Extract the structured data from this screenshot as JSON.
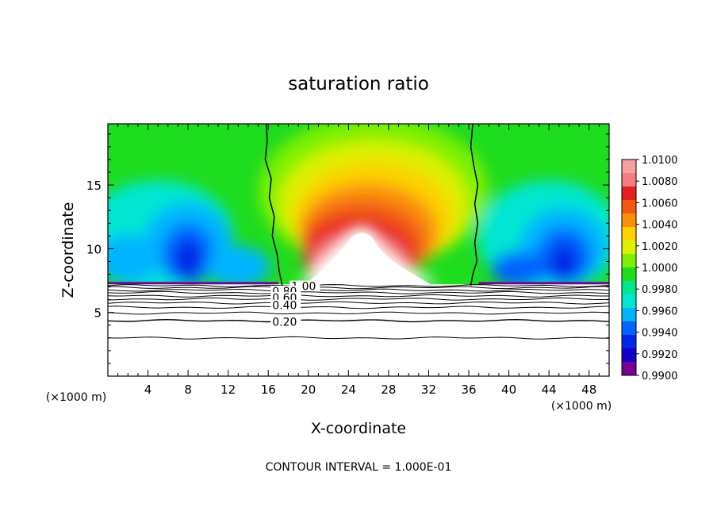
{
  "chart_data": {
    "type": "heatmap",
    "title": "saturation ratio",
    "xlabel": "X-coordinate",
    "ylabel": "Z-coordinate",
    "x_unit_left": "(×1000 m)",
    "x_unit_right": "(×1000 m)",
    "footer": "CONTOUR INTERVAL = 1.000E-01",
    "xlim": [
      0,
      50
    ],
    "ylim": [
      0,
      19.8
    ],
    "x_ticks": [
      4,
      8,
      12,
      16,
      20,
      24,
      28,
      32,
      36,
      40,
      44,
      48
    ],
    "y_ticks": [
      5,
      10,
      15
    ],
    "colorbar": {
      "range": [
        0.99,
        1.01
      ],
      "labels": [
        "1.0100",
        "1.0080",
        "1.0060",
        "1.0040",
        "1.0020",
        "1.0000",
        "0.9980",
        "0.9960",
        "0.9940",
        "0.9920",
        "0.9900"
      ],
      "colors": [
        "#f4a0a0",
        "#f57d7d",
        "#e52020",
        "#f25a14",
        "#fa8f0a",
        "#fcd200",
        "#dcf000",
        "#7df000",
        "#1edc1e",
        "#00e68c",
        "#00e6d2",
        "#00b4ff",
        "#0064ff",
        "#0028e6",
        "#1400c8",
        "#780096"
      ]
    },
    "contour_labels": [
      {
        "text": "1.00",
        "x": 18.3,
        "y": 7.0
      },
      {
        "text": "0.80",
        "x": 16.4,
        "y": 6.6
      },
      {
        "text": "0.60",
        "x": 16.4,
        "y": 6.1
      },
      {
        "text": "0.40",
        "x": 16.4,
        "y": 5.5
      },
      {
        "text": "0.20",
        "x": 16.4,
        "y": 4.2
      }
    ],
    "contour_levels_below_cloud": [
      7.1,
      6.95,
      6.75,
      6.55,
      6.3,
      6.05,
      5.75,
      5.4,
      4.95,
      4.35,
      3.0
    ],
    "boundary_1_contour_left": [
      [
        15.8,
        19.8
      ],
      [
        15.9,
        18.5
      ],
      [
        15.7,
        17
      ],
      [
        16.3,
        15.5
      ],
      [
        16.1,
        14
      ],
      [
        16.6,
        12.5
      ],
      [
        16.4,
        11
      ],
      [
        16.9,
        9.5
      ],
      [
        17.1,
        8.2
      ],
      [
        17.4,
        7.1
      ]
    ],
    "boundary_1_contour_right": [
      [
        36.4,
        19.8
      ],
      [
        36.2,
        18
      ],
      [
        36.5,
        16.5
      ],
      [
        36.9,
        15
      ],
      [
        36.6,
        13.5
      ],
      [
        36.9,
        12
      ],
      [
        36.6,
        10.5
      ],
      [
        36.8,
        9
      ],
      [
        36.4,
        8
      ],
      [
        36.2,
        7.1
      ]
    ],
    "cloud_base": 7.2
  }
}
